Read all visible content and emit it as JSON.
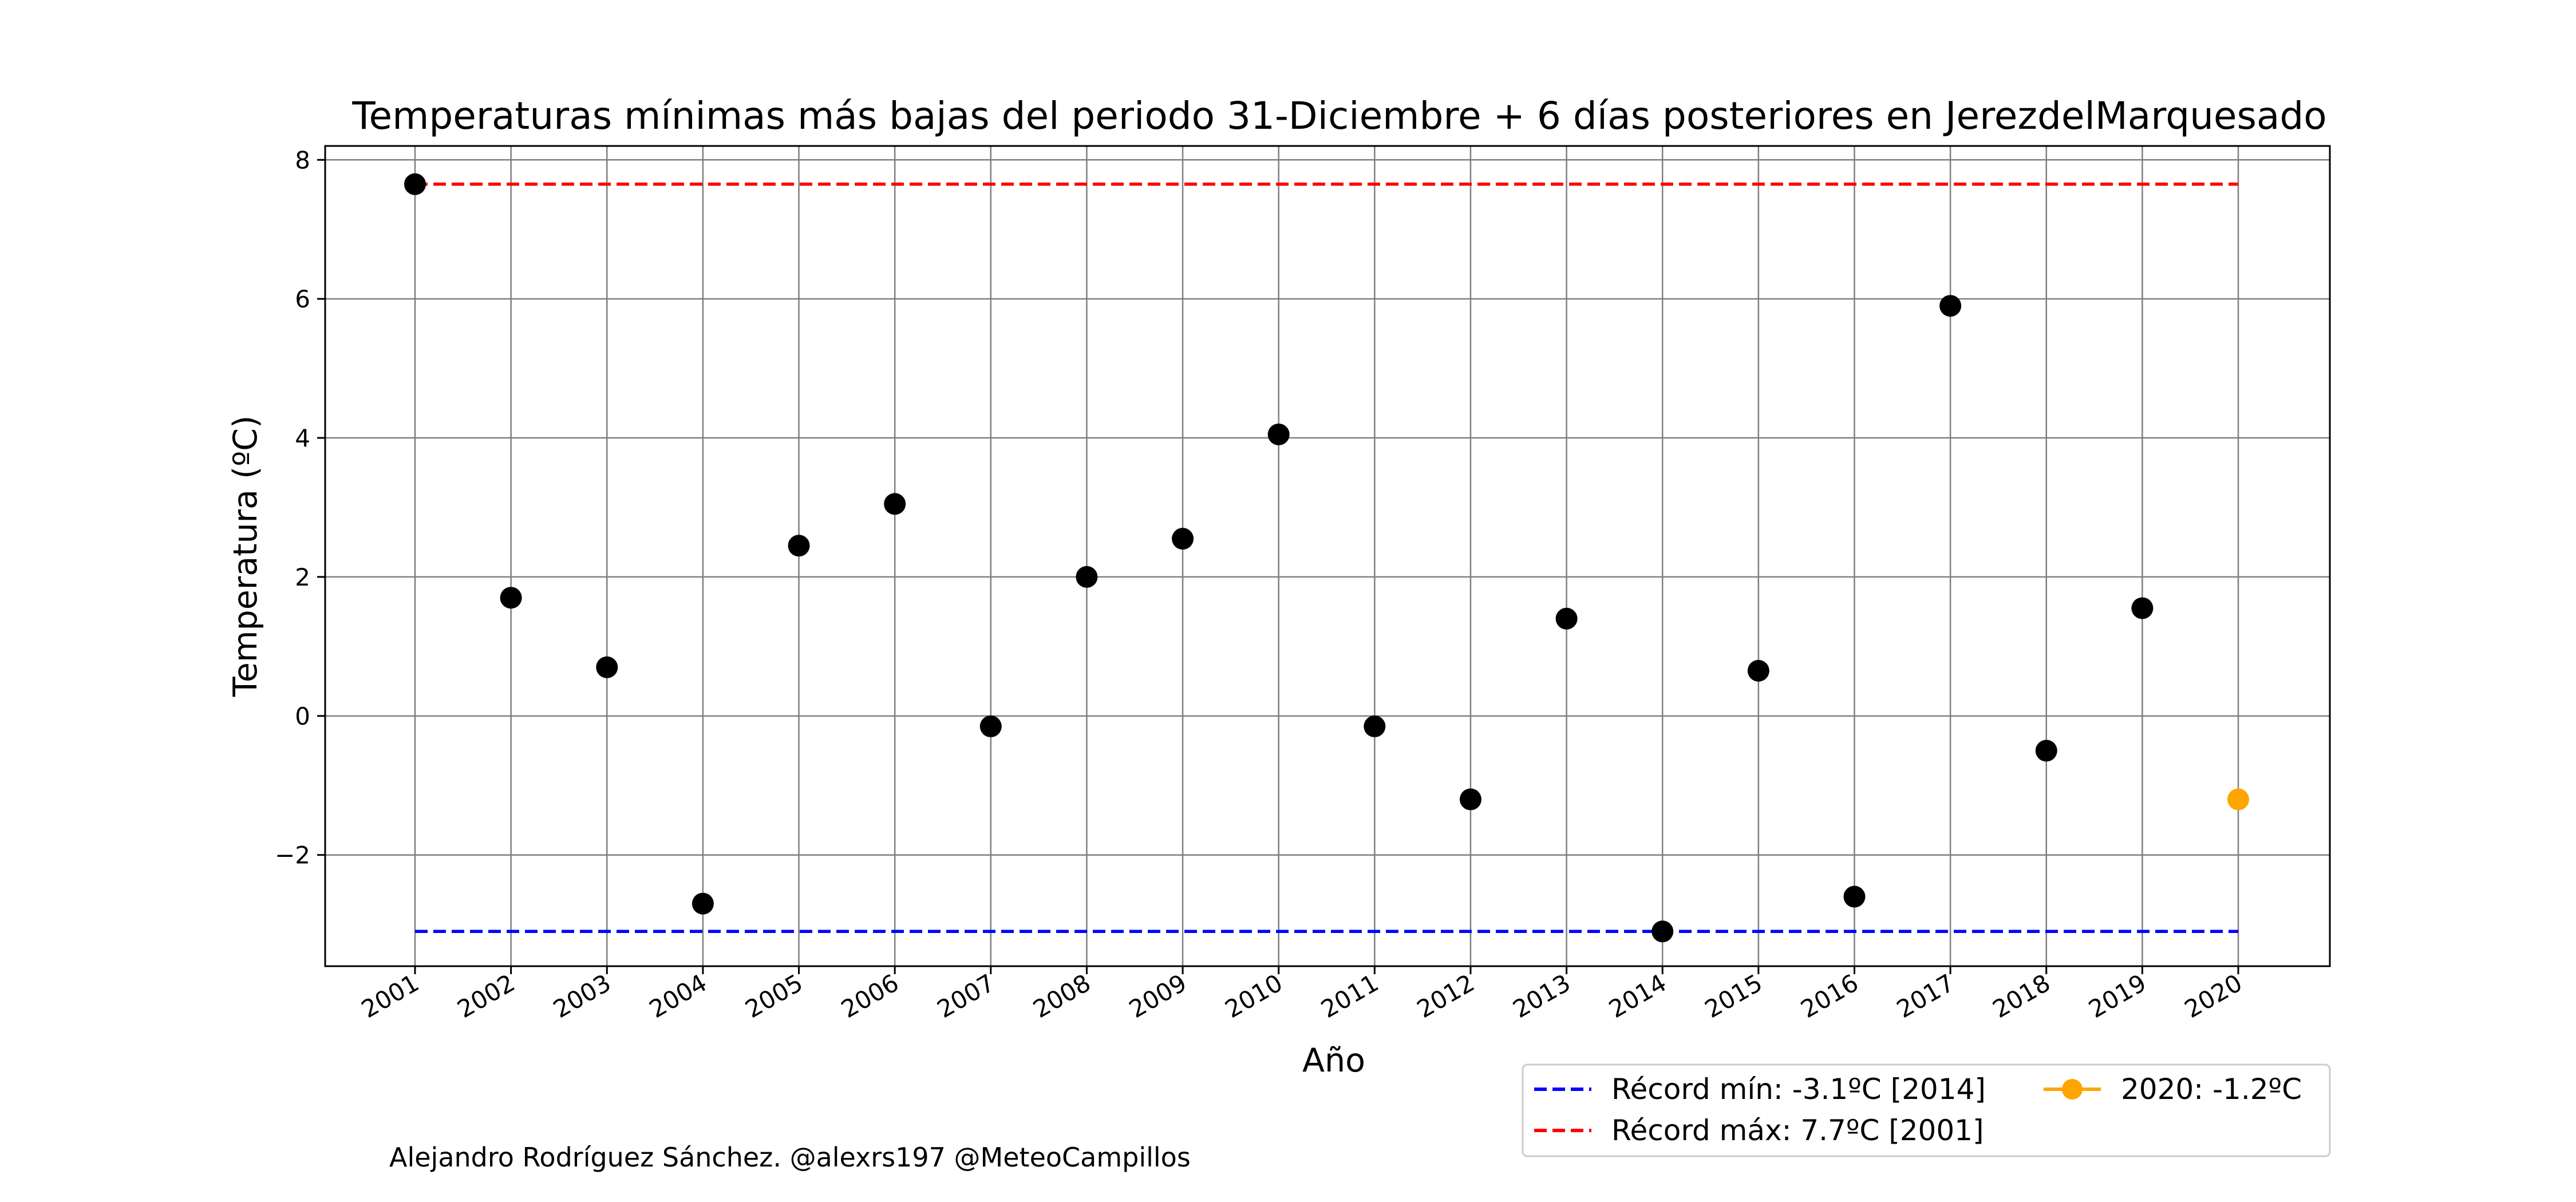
{
  "chart_data": {
    "type": "scatter",
    "title": "Temperaturas mínimas más bajas del periodo 31-Diciembre + 6 días posteriores en JerezdelMarquesado",
    "xlabel": "Año",
    "ylabel": "Temperatura (ºC)",
    "ylim": [
      -3.6,
      8.2
    ],
    "yticks": [
      8,
      6,
      4,
      2,
      0,
      -2
    ],
    "ytick_labels": [
      "8",
      "6",
      "4",
      "2",
      "0",
      "−2"
    ],
    "grid": true,
    "x": [
      "2001",
      "2002",
      "2003",
      "2004",
      "2005",
      "2006",
      "2007",
      "2008",
      "2009",
      "2010",
      "2011",
      "2012",
      "2013",
      "2014",
      "2015",
      "2016",
      "2017",
      "2018",
      "2019",
      "2020"
    ],
    "series": [
      {
        "values": [
          7.65,
          1.7,
          0.7,
          -2.7,
          2.45,
          3.05,
          -0.15,
          2.0,
          2.55,
          4.05,
          -0.15,
          -1.2,
          1.4,
          -3.1,
          0.65,
          -2.6,
          5.9,
          -0.5,
          1.55,
          -1.2
        ],
        "color": "#000000",
        "highlight_index": 19,
        "highlight_color": "#ffa500"
      }
    ],
    "reference_lines": [
      {
        "label": "Récord mín: -3.1ºC [2014]",
        "value": -3.1,
        "color": "#0000ff",
        "style": "dashed"
      },
      {
        "label": "Récord máx: 7.7ºC [2001]",
        "value": 7.65,
        "color": "#ff0000",
        "style": "dashed"
      }
    ],
    "highlight_legend": {
      "label": "2020: -1.2ºC",
      "color": "#ffa500"
    },
    "legend_placement": "bottom-right, outside plot"
  },
  "credit": "Alejandro Rodríguez Sánchez. @alexrs197 @MeteoCampillos"
}
